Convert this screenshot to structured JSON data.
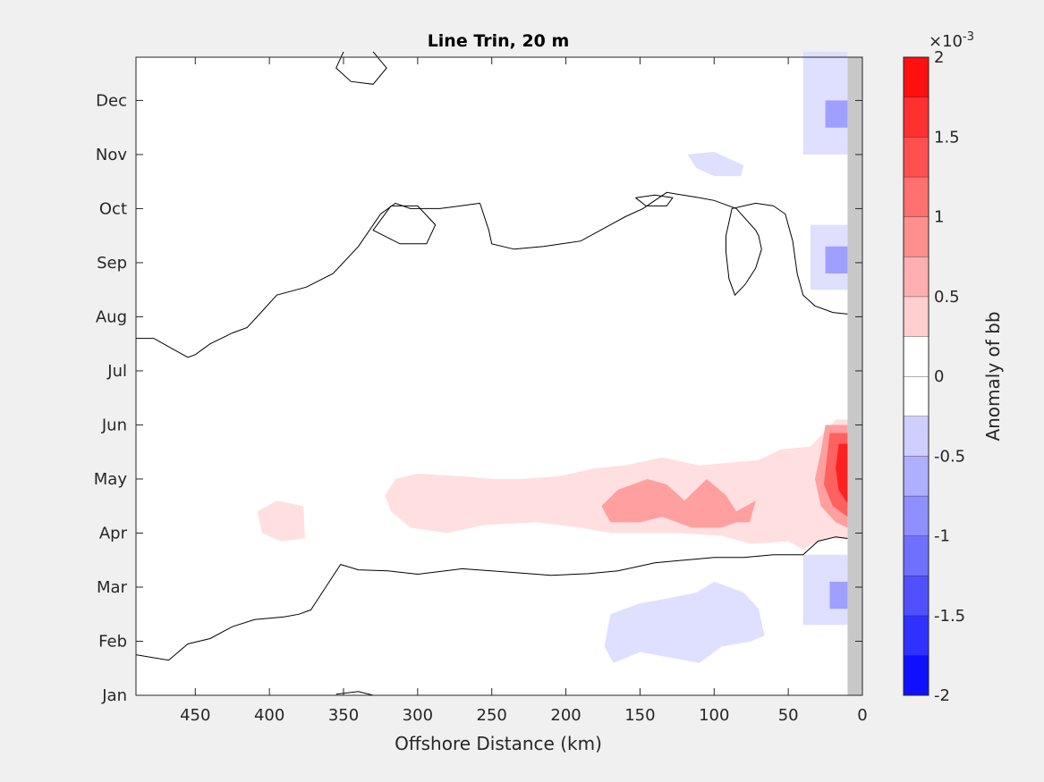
{
  "chart_data": {
    "type": "contour",
    "title": "Line Trin, 20 m",
    "xlabel": "Offshore Distance (km)",
    "xlim": [
      490,
      0
    ],
    "xticks": [
      450,
      400,
      350,
      300,
      250,
      200,
      150,
      100,
      50,
      0
    ],
    "ylim": [
      0,
      11.8
    ],
    "ytick_values": [
      0,
      1,
      2,
      3,
      4,
      5,
      6,
      7,
      8,
      9,
      10,
      11
    ],
    "ytick_labels": [
      "Jan",
      "Feb",
      "Mar",
      "Apr",
      "May",
      "Jun",
      "Jul",
      "Aug",
      "Sep",
      "Oct",
      "Nov",
      "Dec"
    ],
    "colorbar": {
      "label": "Anomaly of bb",
      "exponent_label": "×10",
      "exponent": "-3",
      "range": [
        -2,
        2
      ],
      "step": 0.25,
      "ticks": [
        "2",
        "1.5",
        "1",
        "0.5",
        "0",
        "-0.5",
        "-1",
        "-1.5",
        "-2"
      ],
      "tick_values": [
        2,
        1.5,
        1,
        0.5,
        0,
        -0.5,
        -1,
        -1.5,
        -2
      ]
    },
    "land_mask_x": [
      10,
      0
    ],
    "zero_contours": [
      [
        [
          350,
          11.9
        ],
        [
          355,
          11.6
        ],
        [
          345,
          11.35
        ],
        [
          330,
          11.3
        ],
        [
          321,
          11.6
        ],
        [
          330,
          11.9
        ]
      ],
      [
        [
          490,
          6.6
        ],
        [
          478,
          6.6
        ],
        [
          465,
          6.4
        ],
        [
          455,
          6.25
        ],
        [
          450,
          6.3
        ],
        [
          440,
          6.5
        ],
        [
          425,
          6.7
        ],
        [
          415,
          6.8
        ],
        [
          405,
          7.1
        ],
        [
          395,
          7.4
        ],
        [
          375,
          7.55
        ],
        [
          357,
          7.8
        ],
        [
          340,
          8.3
        ],
        [
          325,
          8.9
        ],
        [
          315,
          9.1
        ],
        [
          305,
          9.0
        ],
        [
          285,
          9.0
        ],
        [
          258,
          9.1
        ]
      ],
      [
        [
          258,
          9.1
        ],
        [
          252,
          8.6
        ],
        [
          250,
          8.35
        ],
        [
          235,
          8.25
        ],
        [
          215,
          8.3
        ],
        [
          190,
          8.4
        ],
        [
          170,
          8.7
        ],
        [
          160,
          8.85
        ],
        [
          148,
          9.0
        ],
        [
          132,
          9.3
        ],
        [
          110,
          9.2
        ]
      ],
      [
        [
          110,
          9.2
        ],
        [
          100,
          9.15
        ],
        [
          85,
          9.0
        ],
        [
          72,
          8.6
        ],
        [
          70,
          8.5
        ],
        [
          68,
          8.25
        ],
        [
          72,
          7.9
        ],
        [
          79,
          7.6
        ],
        [
          86,
          7.4
        ],
        [
          90,
          7.7
        ],
        [
          92,
          8.2
        ],
        [
          92,
          8.5
        ],
        [
          88,
          9.0
        ],
        [
          72,
          9.1
        ],
        [
          60,
          9.05
        ]
      ],
      [
        [
          60,
          9.05
        ],
        [
          52,
          8.9
        ],
        [
          47,
          8.4
        ],
        [
          44,
          7.8
        ],
        [
          40,
          7.4
        ],
        [
          32,
          7.2
        ],
        [
          20,
          7.08
        ],
        [
          10,
          7.05
        ]
      ],
      [
        [
          318,
          9.05
        ],
        [
          330,
          8.6
        ],
        [
          312,
          8.35
        ],
        [
          294,
          8.35
        ],
        [
          288,
          8.7
        ],
        [
          300,
          9.05
        ],
        [
          318,
          9.05
        ]
      ],
      [
        [
          153,
          9.2
        ],
        [
          146,
          9.05
        ],
        [
          132,
          9.05
        ],
        [
          128,
          9.2
        ],
        [
          140,
          9.25
        ],
        [
          153,
          9.2
        ]
      ],
      [
        [
          10,
          2.9
        ],
        [
          18,
          2.93
        ],
        [
          30,
          2.85
        ],
        [
          40,
          2.6
        ],
        [
          60,
          2.6
        ],
        [
          80,
          2.55
        ],
        [
          100,
          2.55
        ],
        [
          120,
          2.5
        ],
        [
          140,
          2.45
        ],
        [
          165,
          2.3
        ],
        [
          185,
          2.25
        ],
        [
          210,
          2.22
        ],
        [
          240,
          2.28
        ],
        [
          270,
          2.34
        ],
        [
          300,
          2.24
        ],
        [
          320,
          2.3
        ],
        [
          340,
          2.32
        ],
        [
          352,
          2.42
        ],
        [
          362,
          2.0
        ],
        [
          372,
          1.58
        ],
        [
          380,
          1.5
        ],
        [
          390,
          1.45
        ],
        [
          410,
          1.4
        ],
        [
          425,
          1.27
        ],
        [
          440,
          1.05
        ],
        [
          455,
          0.95
        ],
        [
          468,
          0.65
        ],
        [
          490,
          0.75
        ]
      ],
      [
        [
          355,
          0.02
        ],
        [
          340,
          0.07
        ],
        [
          330,
          0
        ]
      ],
      [
        [
          10,
          7.05
        ],
        [
          5,
          7.05
        ],
        [
          0,
          7.05
        ]
      ],
      [
        [
          10,
          2.9
        ],
        [
          5,
          2.9
        ],
        [
          0,
          2.9
        ]
      ]
    ],
    "filled_regions": [
      {
        "value": -0.25,
        "coords": [
          [
            40,
            11.9
          ],
          [
            40,
            10
          ],
          [
            10,
            10
          ],
          [
            10,
            11.9
          ]
        ]
      },
      {
        "value": -0.75,
        "coords": [
          [
            25,
            11
          ],
          [
            25,
            10.5
          ],
          [
            10,
            10.5
          ],
          [
            10,
            11
          ]
        ]
      },
      {
        "value": -0.25,
        "coords": [
          [
            35,
            8.7
          ],
          [
            35,
            7.5
          ],
          [
            10,
            7.5
          ],
          [
            10,
            8.7
          ]
        ]
      },
      {
        "value": -0.75,
        "coords": [
          [
            25,
            8.3
          ],
          [
            25,
            7.8
          ],
          [
            10,
            7.8
          ],
          [
            10,
            8.3
          ]
        ]
      },
      {
        "value": -0.25,
        "coords": [
          [
            118,
            10
          ],
          [
            112,
            9.75
          ],
          [
            100,
            9.6
          ],
          [
            82,
            9.6
          ],
          [
            80,
            9.8
          ],
          [
            100,
            10.05
          ],
          [
            118,
            10
          ]
        ]
      },
      {
        "value": -0.25,
        "coords": [
          [
            40,
            2.6
          ],
          [
            40,
            1.3
          ],
          [
            10,
            1.3
          ],
          [
            10,
            2.6
          ]
        ]
      },
      {
        "value": -0.75,
        "coords": [
          [
            22,
            2.1
          ],
          [
            22,
            1.6
          ],
          [
            10,
            1.6
          ],
          [
            10,
            2.1
          ]
        ]
      },
      {
        "value": -0.25,
        "coords": [
          [
            170,
            1.5
          ],
          [
            150,
            1.7
          ],
          [
            130,
            1.8
          ],
          [
            112,
            1.9
          ],
          [
            100,
            2.1
          ],
          [
            80,
            1.9
          ],
          [
            70,
            1.6
          ],
          [
            66,
            1.1
          ],
          [
            75,
            1.0
          ],
          [
            95,
            0.9
          ],
          [
            110,
            0.6
          ],
          [
            130,
            0.7
          ],
          [
            150,
            0.8
          ],
          [
            168,
            0.6
          ],
          [
            174,
            0.9
          ],
          [
            170,
            1.5
          ]
        ]
      },
      {
        "value": 0.25,
        "coords": [
          [
            405,
            3.0
          ],
          [
            408,
            3.4
          ],
          [
            395,
            3.6
          ],
          [
            377,
            3.5
          ],
          [
            376,
            2.9
          ],
          [
            392,
            2.85
          ],
          [
            405,
            3.0
          ]
        ]
      },
      {
        "value": 0.25,
        "coords": [
          [
            315,
            4.0
          ],
          [
            300,
            4.1
          ],
          [
            270,
            4.05
          ],
          [
            250,
            4.0
          ],
          [
            230,
            4.0
          ],
          [
            205,
            4.05
          ],
          [
            180,
            4.2
          ],
          [
            160,
            4.25
          ],
          [
            135,
            4.4
          ],
          [
            110,
            4.25
          ],
          [
            90,
            4.3
          ],
          [
            70,
            4.35
          ],
          [
            55,
            4.55
          ],
          [
            35,
            4.6
          ],
          [
            28,
            4.8
          ],
          [
            18,
            5.1
          ],
          [
            10,
            5.1
          ],
          [
            10,
            2.9
          ],
          [
            20,
            2.9
          ],
          [
            30,
            2.85
          ],
          [
            40,
            2.7
          ],
          [
            50,
            2.85
          ],
          [
            75,
            2.8
          ],
          [
            95,
            2.95
          ],
          [
            125,
            3.0
          ],
          [
            150,
            3.0
          ],
          [
            170,
            3.0
          ],
          [
            190,
            3.1
          ],
          [
            220,
            3.2
          ],
          [
            255,
            3.15
          ],
          [
            280,
            3.0
          ],
          [
            305,
            3.1
          ],
          [
            318,
            3.4
          ],
          [
            322,
            3.7
          ],
          [
            315,
            4.0
          ]
        ]
      },
      {
        "value": 0.75,
        "coords": [
          [
            165,
            3.8
          ],
          [
            145,
            4.0
          ],
          [
            132,
            3.9
          ],
          [
            120,
            3.6
          ],
          [
            105,
            4.0
          ],
          [
            92,
            3.7
          ],
          [
            85,
            3.4
          ],
          [
            72,
            3.6
          ],
          [
            76,
            3.2
          ],
          [
            85,
            3.2
          ],
          [
            95,
            3.1
          ],
          [
            115,
            3.1
          ],
          [
            135,
            3.3
          ],
          [
            150,
            3.2
          ],
          [
            170,
            3.2
          ],
          [
            176,
            3.5
          ],
          [
            165,
            3.8
          ]
        ]
      },
      {
        "value": 0.75,
        "coords": [
          [
            25,
            5.0
          ],
          [
            10,
            5.0
          ],
          [
            10,
            3.1
          ],
          [
            18,
            3.2
          ],
          [
            28,
            3.5
          ],
          [
            32,
            4.0
          ],
          [
            28,
            4.5
          ],
          [
            25,
            5.0
          ]
        ]
      },
      {
        "value": 1.25,
        "coords": [
          [
            22,
            4.85
          ],
          [
            10,
            4.85
          ],
          [
            10,
            3.3
          ],
          [
            20,
            3.5
          ],
          [
            26,
            3.9
          ],
          [
            22,
            4.85
          ]
        ]
      },
      {
        "value": 1.75,
        "coords": [
          [
            16,
            4.65
          ],
          [
            10,
            4.65
          ],
          [
            10,
            3.55
          ],
          [
            16,
            3.8
          ],
          [
            18,
            4.2
          ],
          [
            16,
            4.65
          ]
        ]
      }
    ]
  }
}
